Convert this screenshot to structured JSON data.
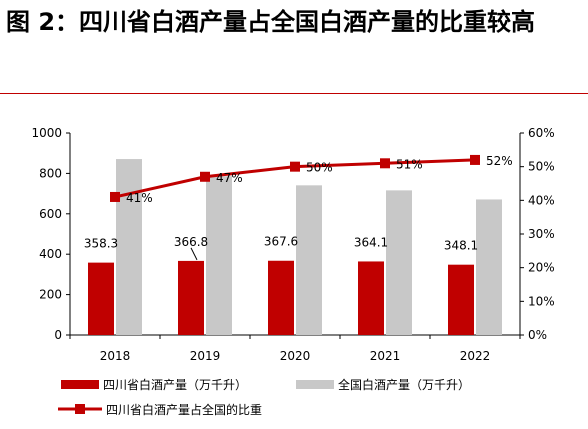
{
  "title": "图 2：四川省白酒产量占全国白酒产量的比重较高",
  "colors": {
    "sichuan_bar": "#c00000",
    "national_bar": "#c8c8c8",
    "share_line": "#c00000",
    "rule": "#c00000"
  },
  "chart_data": {
    "type": "bar",
    "categories": [
      "2018",
      "2019",
      "2020",
      "2021",
      "2022"
    ],
    "series": [
      {
        "name": "四川省白酒产量（万千升）",
        "type": "bar",
        "axis": "left",
        "values": [
          358.3,
          366.8,
          367.6,
          364.1,
          348.1
        ],
        "labels": [
          "358.3",
          "366.8",
          "367.6",
          "364.1",
          "348.1"
        ]
      },
      {
        "name": "全国白酒产量（万千升）",
        "type": "bar",
        "axis": "left",
        "values": [
          871,
          786,
          741,
          716,
          671
        ]
      },
      {
        "name": "四川省白酒产量占全国的比重",
        "type": "line",
        "axis": "right",
        "values": [
          41,
          47,
          50,
          51,
          52
        ],
        "labels": [
          "41%",
          "47%",
          "50%",
          "51%",
          "52%"
        ]
      }
    ],
    "y_left": {
      "ylim": [
        0,
        1000
      ],
      "ticks": [
        0,
        200,
        400,
        600,
        800,
        1000
      ],
      "tick_labels": [
        "0",
        "200",
        "400",
        "600",
        "800",
        "1000"
      ]
    },
    "y_right": {
      "ylim": [
        0,
        60
      ],
      "ticks": [
        0,
        10,
        20,
        30,
        40,
        50,
        60
      ],
      "tick_labels": [
        "0%",
        "10%",
        "20%",
        "30%",
        "40%",
        "50%",
        "60%"
      ]
    },
    "grid": false,
    "legend_position": "bottom"
  }
}
